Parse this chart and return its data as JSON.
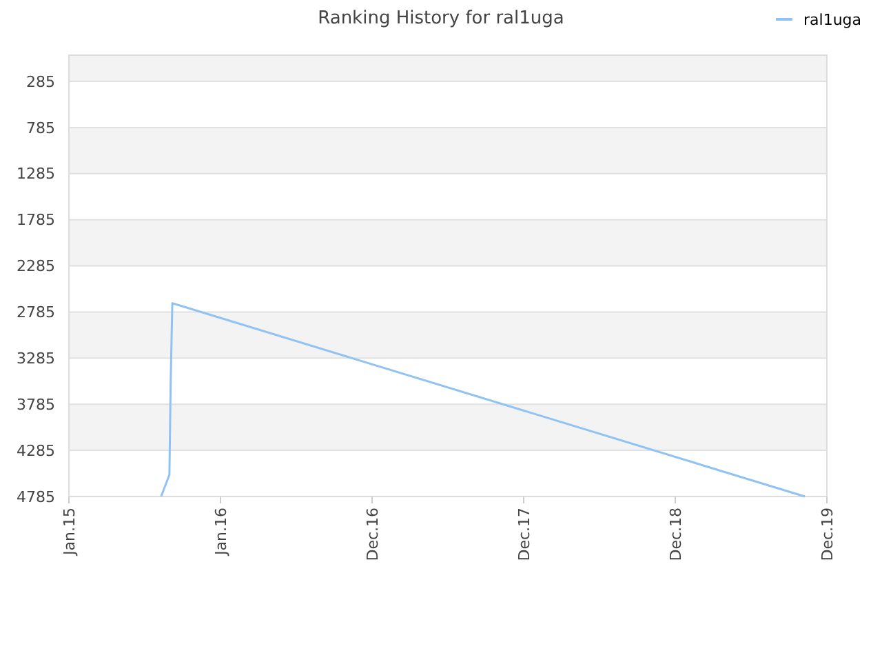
{
  "chart_data": {
    "type": "line",
    "title": "Ranking History for ral1uga",
    "x": [
      "2015-08-11",
      "2015-08-31",
      "2015-09-03",
      "2015-09-07",
      "2019-11-08"
    ],
    "series": [
      {
        "name": "ral1uga",
        "color": "#90c3f3",
        "values": [
          4785,
          4550,
          3560,
          2690,
          4785
        ]
      }
    ],
    "xlim": [
      "2015-01-01",
      "2019-12-31"
    ],
    "xticks": [
      {
        "value": "2015-01-01",
        "label": "Jan.15"
      },
      {
        "value": "2016-01-01",
        "label": "Jan.16"
      },
      {
        "value": "2016-12-31",
        "label": "Dec.16"
      },
      {
        "value": "2017-12-31",
        "label": "Dec.17"
      },
      {
        "value": "2018-12-31",
        "label": "Dec.18"
      },
      {
        "value": "2019-12-31",
        "label": "Dec.19"
      }
    ],
    "ylim": [
      4785,
      1
    ],
    "yticks": [
      285,
      785,
      1285,
      1785,
      2285,
      2785,
      3285,
      3785,
      4285,
      4785
    ],
    "grid": "y",
    "legend": "top right",
    "marker": "none",
    "line_style": "solid"
  }
}
